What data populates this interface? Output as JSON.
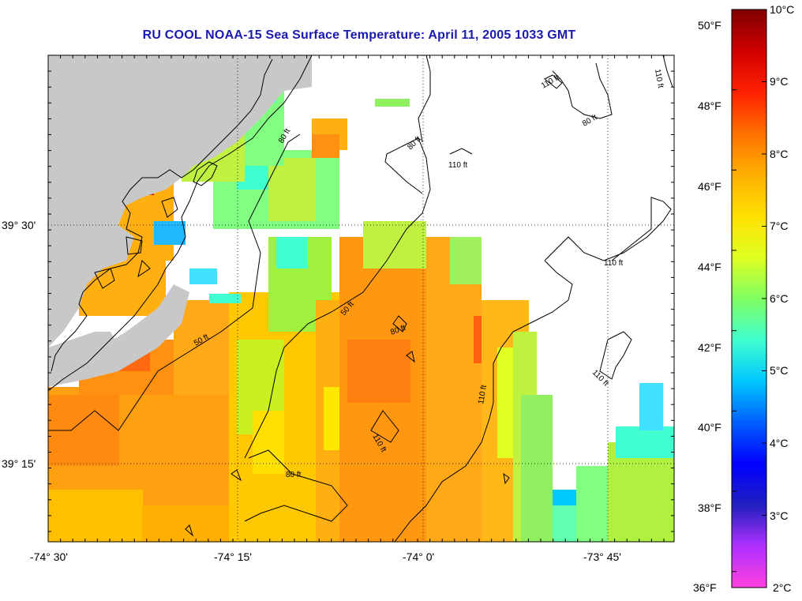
{
  "title": "RU COOL  NOAA-15  Sea Surface Temperature:  April 11, 2005 1033 GMT",
  "map": {
    "lon_labels": [
      "-74° 30'",
      "-74° 15'",
      "-74° 0'",
      "-73° 45'"
    ],
    "lat_labels": [
      "39° 30'",
      "39° 15'"
    ],
    "contour_labels": [
      "110 ft",
      "110 ft",
      "110 ft",
      "80 ft",
      "80 ft",
      "80 ft",
      "110 ft",
      "110 ft",
      "110 ft",
      "110 ft",
      "50 ft",
      "50 ft",
      "80 ft",
      "80 ft",
      "110 ft",
      "110 ft",
      "80 ft"
    ],
    "colors": {
      "land": "#c8c8c8",
      "no_data": "#ffffff",
      "grid": "#333333"
    }
  },
  "colorbar": {
    "celsius_labels": [
      "10°C",
      "9°C",
      "8°C",
      "7°C",
      "6°C",
      "5°C",
      "4°C",
      "3°C",
      "2°C"
    ],
    "fahrenheit_labels": [
      "50°F",
      "48°F",
      "46°F",
      "44°F",
      "42°F",
      "40°F",
      "38°F",
      "36°F"
    ],
    "stops": [
      "#ff40e0",
      "#b030ff",
      "#2020c0",
      "#0000ff",
      "#0060ff",
      "#00c8ff",
      "#40ffd0",
      "#80ff60",
      "#e0ff20",
      "#ffe000",
      "#ffb000",
      "#ff7000",
      "#ff2000",
      "#d00000",
      "#800000"
    ]
  }
}
